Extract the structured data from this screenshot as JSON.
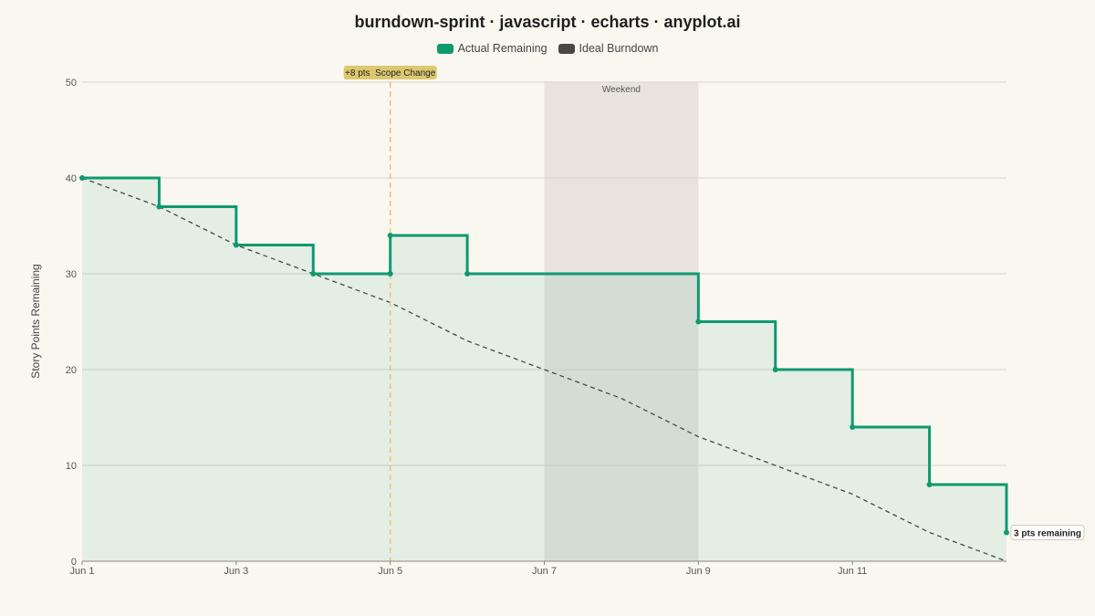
{
  "chart_data": {
    "type": "line",
    "title": "burndown-sprint · javascript · echarts · anyplot.ai",
    "ylabel": "Story Points Remaining",
    "xlabel": "",
    "ylim": [
      0,
      50
    ],
    "yticks": [
      0,
      10,
      20,
      30,
      40,
      50
    ],
    "xticks": [
      "Jun 1",
      "Jun 3",
      "Jun 5",
      "Jun 7",
      "Jun 9",
      "Jun 11"
    ],
    "x_days": [
      "Jun 1",
      "Jun 2",
      "Jun 3",
      "Jun 4",
      "Jun 5",
      "Jun 6",
      "Jun 7",
      "Jun 8",
      "Jun 9",
      "Jun 10",
      "Jun 11",
      "Jun 12",
      "Jun 13"
    ],
    "grid": true,
    "legend_position": "top-center",
    "series": [
      {
        "name": "Actual Remaining",
        "style": "step",
        "color": "#0e9a6e",
        "values": [
          40,
          37,
          33,
          30,
          34,
          30,
          30,
          30,
          25,
          20,
          14,
          8,
          3
        ],
        "step_points": [
          [
            "Jun 1",
            40
          ],
          [
            "Jun 2",
            37
          ],
          [
            "Jun 3",
            33
          ],
          [
            "Jun 4",
            30
          ],
          [
            "Jun 5",
            30
          ],
          [
            "Jun 5",
            34
          ],
          [
            "Jun 6",
            30
          ],
          [
            "Jun 9",
            25
          ],
          [
            "Jun 10",
            20
          ],
          [
            "Jun 11",
            14
          ],
          [
            "Jun 12",
            8
          ],
          [
            "Jun 13",
            3
          ]
        ]
      },
      {
        "name": "Ideal Burndown",
        "style": "dashed",
        "color": "#4a4844",
        "values": [
          40,
          37,
          33,
          30,
          27,
          23,
          20,
          17,
          13,
          10,
          7,
          3,
          0
        ]
      }
    ],
    "annotations": [
      {
        "type": "vertical-line",
        "x": "Jun 5",
        "label": "+8 pts  Scope Change",
        "color": "#e1c86a"
      },
      {
        "type": "shaded-region",
        "x_start": "Jun 7",
        "x_end": "Jun 9",
        "label": "Weekend"
      },
      {
        "type": "end-label",
        "x": "Jun 13",
        "y": 3,
        "label": "3 pts remaining"
      }
    ]
  }
}
